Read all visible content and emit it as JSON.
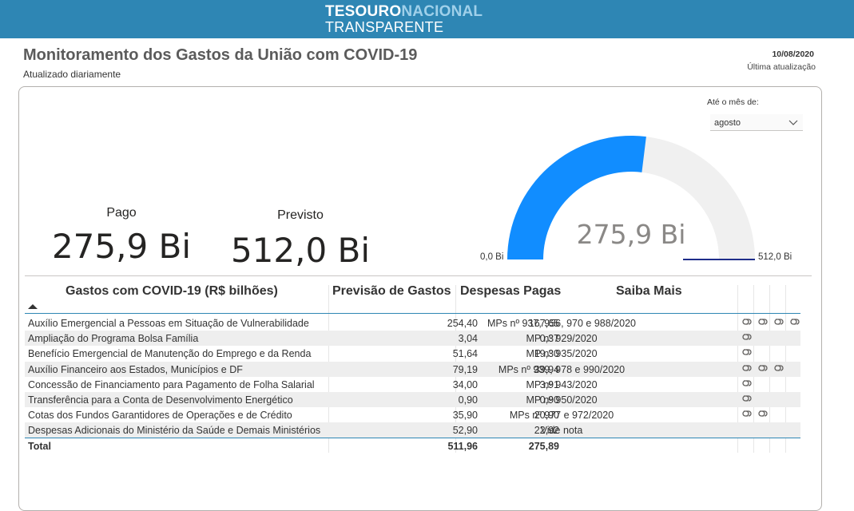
{
  "brand": {
    "line1_a": "Tesouro",
    "line1_b": "Nacional",
    "line2": "Transparente",
    "color_primary": "#2e86b4",
    "color_secondary": "#9fd0ea"
  },
  "header": {
    "title": "Monitoramento dos Gastos da União com COVID-19",
    "subtitle": "Atualizado diariamente",
    "update_date": "10/08/2020",
    "update_label": "Última atualização"
  },
  "filter": {
    "label": "Até o mês de:",
    "selected": "agosto"
  },
  "kpis": {
    "paid_label": "Pago",
    "paid_value": "275,9 Bi",
    "forecast_label": "Previsto",
    "forecast_value": "512,0 Bi"
  },
  "gauge": {
    "value": 275.9,
    "min": 0,
    "max": 512.0,
    "value_label": "275,9 Bi",
    "min_label": "0,0 Bi",
    "max_label": "512,0 Bi",
    "fill_color": "#118dff",
    "track_color": "#f0f0f0",
    "target_color": "#1f2d8a"
  },
  "table": {
    "headers": {
      "name": "Gastos com COVID-19 (R$ bilhões)",
      "forecast": "Previsão de Gastos",
      "paid": "Despesas Pagas",
      "more": "Saiba Mais"
    },
    "rows": [
      {
        "name": "Auxílio Emergencial a Pessoas em Situação de Vulnerabilidade",
        "forecast": "254,40",
        "paid": "167,65",
        "more": "MPs nº 937, 956, 970 e 988/2020",
        "links": 4
      },
      {
        "name": "Ampliação do Programa Bolsa Família",
        "forecast": "3,04",
        "paid": "0,37",
        "more": "MP nº 929/2020",
        "links": 1
      },
      {
        "name": "Benefício Emergencial de Manutenção do Emprego e da Renda",
        "forecast": "51,64",
        "paid": "19,30",
        "more": "MP nº 935/2020",
        "links": 1
      },
      {
        "name": "Auxílio Financeiro aos Estados, Municípios e DF",
        "forecast": "79,19",
        "paid": "39,94",
        "more": "MPs nº 939, 978 e 990/2020",
        "links": 3
      },
      {
        "name": "Concessão de Financiamento para Pagamento de Folha Salarial",
        "forecast": "34,00",
        "paid": "3,91",
        "more": "MP nº 943/2020",
        "links": 1
      },
      {
        "name": "Transferência para a Conta de Desenvolvimento Energético",
        "forecast": "0,90",
        "paid": "0,90",
        "more": "MP nº 950/2020",
        "links": 1
      },
      {
        "name": "Cotas dos Fundos Garantidores de Operações e de Crédito",
        "forecast": "35,90",
        "paid": "20,90",
        "more": "MPs nº 977 e 972/2020",
        "links": 2
      },
      {
        "name": "Despesas Adicionais do Ministério da Saúde e Demais Ministérios",
        "forecast": "52,90",
        "paid": "22,92",
        "more": "Vide nota",
        "links": 0
      }
    ],
    "total": {
      "name": "Total",
      "forecast": "511,96",
      "paid": "275,89"
    }
  }
}
